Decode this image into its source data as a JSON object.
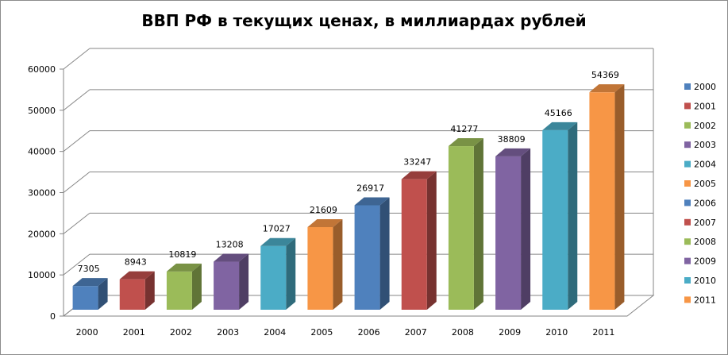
{
  "chart_data": {
    "type": "bar",
    "title": "ВВП РФ в текущих ценах, в миллиардах рублей",
    "xlabel": "",
    "ylabel": "",
    "categories": [
      "2000",
      "2001",
      "2002",
      "2003",
      "2004",
      "2005",
      "2006",
      "2007",
      "2008",
      "2009",
      "2010",
      "2011"
    ],
    "values": [
      7305,
      8943,
      10819,
      13208,
      17027,
      21609,
      26917,
      33247,
      41277,
      38809,
      45166,
      54369
    ],
    "ylim": [
      0,
      60000
    ],
    "yticks": [
      0,
      10000,
      20000,
      30000,
      40000,
      50000,
      60000
    ],
    "grid": true,
    "legend_position": "right",
    "style": "3d-column",
    "colors": [
      "#4F81BD",
      "#C0504D",
      "#9BBB59",
      "#8064A2",
      "#4BACC6",
      "#F79646",
      "#4F81BD",
      "#C0504D",
      "#9BBB59",
      "#8064A2",
      "#4BACC6",
      "#F79646"
    ]
  }
}
